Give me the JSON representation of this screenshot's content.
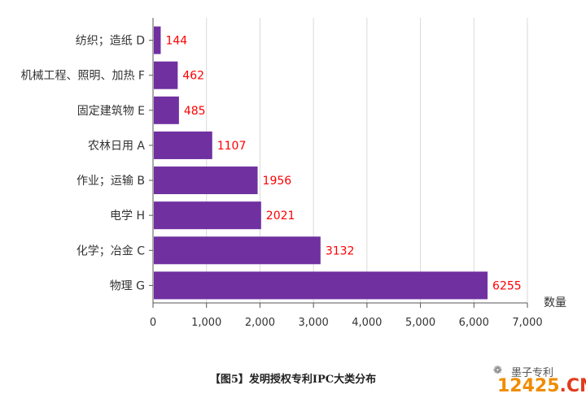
{
  "chart_data": {
    "type": "bar",
    "orientation": "horizontal",
    "categories": [
      "纺织；造纸 D",
      "机械工程、照明、加热 F",
      "固定建筑物 E",
      "农林日用 A",
      "作业；运输 B",
      "电学 H",
      "化学；冶金 C",
      "物理 G"
    ],
    "values": [
      144,
      462,
      485,
      1107,
      1956,
      2021,
      3132,
      6255
    ],
    "value_labels": [
      "144",
      "462",
      "485",
      "1107",
      "1956",
      "2021",
      "3132",
      "6255"
    ],
    "xlabel": "数量",
    "xlim": [
      0,
      7000
    ],
    "x_ticks": [
      0,
      1000,
      2000,
      3000,
      4000,
      5000,
      6000,
      7000
    ],
    "x_tick_labels": [
      "0",
      "1,000",
      "2,000",
      "3,000",
      "4,000",
      "5,000",
      "6,000",
      "7,000"
    ],
    "grid": "vertical",
    "bar_color": "#7030a0",
    "label_color": "#ff0000"
  },
  "caption": "【图5】发明授权专利IPC大类分布",
  "watermark": {
    "text": "墨子专利",
    "site_number": "12425",
    "site_domain": ".CN",
    "icon": "wechat-icon"
  }
}
